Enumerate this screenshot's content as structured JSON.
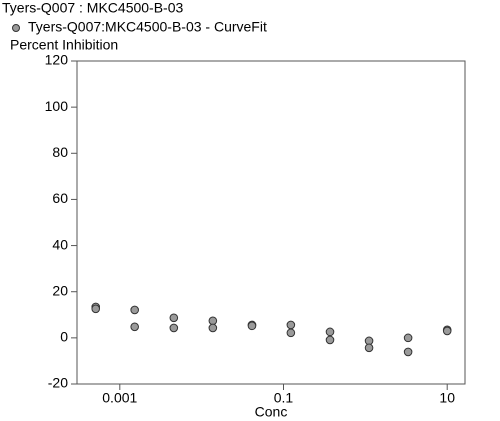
{
  "chart_data": {
    "type": "scatter",
    "title": "Tyers-Q007  :  MKC4500-B-03",
    "y_label": "Percent Inhibition",
    "x_label": "Conc",
    "log_x": true,
    "series": [
      {
        "name": "Tyers-Q007:MKC4500-B-03 - CurveFit",
        "color": "#9a9a9a",
        "x": [
          0.000508,
          0.000508,
          0.00152,
          0.00152,
          0.00457,
          0.00457,
          0.0137,
          0.0137,
          0.0412,
          0.0412,
          0.123,
          0.123,
          0.37,
          0.37,
          1.11,
          1.11,
          3.33,
          3.33,
          10,
          10
        ],
        "values": [
          13.4,
          12.6,
          12.1,
          4.8,
          8.7,
          4.3,
          7.4,
          4.3,
          5.6,
          5.2,
          5.6,
          2.2,
          2.6,
          -0.9,
          -1.3,
          -4.3,
          0,
          -6.1,
          3.5,
          3.0
        ]
      }
    ],
    "xlim": [
      0.0003,
      16.5
    ],
    "xticks": [
      0.001,
      0.1,
      10
    ],
    "ylim": [
      -20,
      120
    ],
    "yticks": [
      -20,
      0,
      20,
      40,
      60,
      80,
      100,
      120
    ]
  }
}
